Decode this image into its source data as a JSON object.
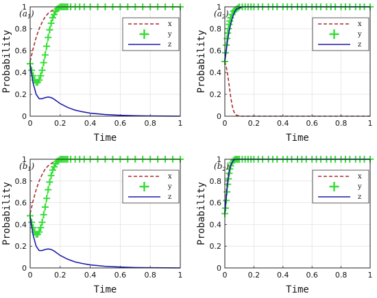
{
  "chart_data": [
    {
      "type": "line",
      "panel_label": "a",
      "panel_subscript": "1",
      "xlabel": "Time",
      "ylabel": "Probability",
      "xlim": [
        0,
        1
      ],
      "ylim": [
        0,
        1
      ],
      "xticks": [
        "0",
        "0.2",
        "0.4",
        "0.6",
        "0.8",
        "1"
      ],
      "yticks": [
        "0",
        "0.2",
        "0.4",
        "0.6",
        "0.8",
        "1"
      ],
      "grid": true,
      "legend_position": "top-right",
      "series": [
        {
          "name": "x",
          "color": "#a52a2a",
          "style": "dashed",
          "x": [
            0,
            0.02,
            0.04,
            0.06,
            0.08,
            0.1,
            0.12,
            0.14,
            0.16,
            0.18,
            0.2,
            0.25,
            0.3,
            0.4,
            0.6,
            0.8,
            1.0
          ],
          "y": [
            0.5,
            0.62,
            0.72,
            0.8,
            0.86,
            0.91,
            0.94,
            0.96,
            0.98,
            0.99,
            1.0,
            1.0,
            1.0,
            1.0,
            1.0,
            1.0,
            1.0
          ]
        },
        {
          "name": "y",
          "color": "#33dd33",
          "style": "plus",
          "x": [
            0,
            0.01,
            0.02,
            0.03,
            0.04,
            0.05,
            0.06,
            0.07,
            0.08,
            0.09,
            0.1,
            0.11,
            0.12,
            0.13,
            0.14,
            0.15,
            0.16,
            0.17,
            0.18,
            0.19,
            0.2,
            0.21,
            0.22,
            0.23,
            0.24,
            0.25,
            0.27,
            0.3,
            0.33,
            0.36,
            0.4,
            0.45,
            0.5,
            0.55,
            0.6,
            0.65,
            0.7,
            0.75,
            0.8,
            0.85,
            0.9,
            0.95,
            1.0
          ],
          "y": [
            0.48,
            0.42,
            0.37,
            0.33,
            0.31,
            0.31,
            0.33,
            0.37,
            0.42,
            0.49,
            0.56,
            0.64,
            0.72,
            0.79,
            0.85,
            0.9,
            0.93,
            0.96,
            0.98,
            0.99,
            1.0,
            1.0,
            1.0,
            1.0,
            1.0,
            1.0,
            1.0,
            1.0,
            1.0,
            1.0,
            1.0,
            1.0,
            1.0,
            1.0,
            1.0,
            1.0,
            1.0,
            1.0,
            1.0,
            1.0,
            1.0,
            1.0,
            1.0
          ]
        },
        {
          "name": "z",
          "color": "#1a1aaa",
          "style": "solid",
          "x": [
            0,
            0.02,
            0.04,
            0.06,
            0.08,
            0.1,
            0.12,
            0.14,
            0.16,
            0.18,
            0.2,
            0.25,
            0.3,
            0.35,
            0.4,
            0.5,
            0.6,
            0.7,
            0.8,
            0.9,
            1.0
          ],
          "y": [
            0.47,
            0.3,
            0.2,
            0.16,
            0.16,
            0.17,
            0.175,
            0.17,
            0.155,
            0.135,
            0.115,
            0.08,
            0.055,
            0.04,
            0.028,
            0.015,
            0.008,
            0.004,
            0.002,
            0.001,
            0.0
          ]
        }
      ]
    },
    {
      "type": "line",
      "panel_label": "a",
      "panel_subscript": "2",
      "xlabel": "Time",
      "ylabel": "Probability",
      "xlim": [
        0,
        1
      ],
      "ylim": [
        0,
        1
      ],
      "xticks": [
        "0",
        "0.2",
        "0.4",
        "0.6",
        "0.8",
        "1"
      ],
      "yticks": [
        "0",
        "0.2",
        "0.4",
        "0.6",
        "0.8",
        "1"
      ],
      "grid": true,
      "legend_position": "top-right",
      "series": [
        {
          "name": "x",
          "color": "#a52a2a",
          "style": "dashed",
          "x": [
            0,
            0.01,
            0.02,
            0.03,
            0.04,
            0.05,
            0.06,
            0.07,
            0.08,
            0.1,
            0.15,
            0.2,
            0.4,
            0.6,
            0.8,
            1.0
          ],
          "y": [
            0.5,
            0.45,
            0.38,
            0.28,
            0.18,
            0.1,
            0.05,
            0.02,
            0.01,
            0.0,
            0.0,
            0.0,
            0.0,
            0.0,
            0.0,
            0.0
          ]
        },
        {
          "name": "y",
          "color": "#33dd33",
          "style": "plus",
          "x": [
            0,
            0.005,
            0.01,
            0.015,
            0.02,
            0.025,
            0.03,
            0.035,
            0.04,
            0.05,
            0.06,
            0.07,
            0.08,
            0.09,
            0.1,
            0.12,
            0.14,
            0.16,
            0.18,
            0.2,
            0.23,
            0.26,
            0.3,
            0.33,
            0.36,
            0.4,
            0.43,
            0.46,
            0.5,
            0.53,
            0.56,
            0.6,
            0.63,
            0.66,
            0.7,
            0.73,
            0.76,
            0.8,
            0.83,
            0.86,
            0.9,
            0.93,
            0.96,
            1.0
          ],
          "y": [
            0.5,
            0.58,
            0.65,
            0.71,
            0.76,
            0.8,
            0.84,
            0.87,
            0.9,
            0.93,
            0.96,
            0.97,
            0.98,
            0.99,
            1.0,
            1.0,
            1.0,
            1.0,
            1.0,
            1.0,
            1.0,
            1.0,
            1.0,
            1.0,
            1.0,
            1.0,
            1.0,
            1.0,
            1.0,
            1.0,
            1.0,
            1.0,
            1.0,
            1.0,
            1.0,
            1.0,
            1.0,
            1.0,
            1.0,
            1.0,
            1.0,
            1.0,
            1.0,
            1.0
          ]
        },
        {
          "name": "z",
          "color": "#1a1aaa",
          "style": "solid",
          "x": [
            0,
            0.01,
            0.02,
            0.03,
            0.04,
            0.05,
            0.06,
            0.07,
            0.08,
            0.1,
            0.12,
            0.15,
            0.2,
            0.4,
            0.6,
            0.8,
            1.0
          ],
          "y": [
            0.5,
            0.6,
            0.7,
            0.78,
            0.84,
            0.89,
            0.93,
            0.96,
            0.98,
            0.99,
            1.0,
            1.0,
            1.0,
            1.0,
            1.0,
            1.0,
            1.0
          ]
        }
      ]
    },
    {
      "type": "line",
      "panel_label": "b",
      "panel_subscript": "1",
      "xlabel": "Time",
      "ylabel": "Probability",
      "xlim": [
        0,
        1
      ],
      "ylim": [
        0,
        1
      ],
      "xticks": [
        "0",
        "0.2",
        "0.4",
        "0.6",
        "0.8",
        "1"
      ],
      "yticks": [
        "0",
        "0.2",
        "0.4",
        "0.6",
        "0.8",
        "1"
      ],
      "grid": true,
      "legend_position": "top-right",
      "series": [
        {
          "name": "x",
          "color": "#a52a2a",
          "style": "dashed",
          "x": [
            0,
            0.02,
            0.04,
            0.06,
            0.08,
            0.1,
            0.12,
            0.14,
            0.16,
            0.18,
            0.2,
            0.25,
            0.3,
            0.4,
            0.6,
            0.8,
            1.0
          ],
          "y": [
            0.5,
            0.62,
            0.72,
            0.8,
            0.86,
            0.91,
            0.94,
            0.96,
            0.98,
            0.99,
            1.0,
            1.0,
            1.0,
            1.0,
            1.0,
            1.0,
            1.0
          ]
        },
        {
          "name": "y",
          "color": "#33dd33",
          "style": "plus",
          "x": [
            0,
            0.01,
            0.02,
            0.03,
            0.04,
            0.05,
            0.06,
            0.07,
            0.08,
            0.09,
            0.1,
            0.11,
            0.12,
            0.13,
            0.14,
            0.15,
            0.16,
            0.17,
            0.18,
            0.19,
            0.2,
            0.21,
            0.22,
            0.23,
            0.24,
            0.25,
            0.27,
            0.3,
            0.33,
            0.36,
            0.4,
            0.45,
            0.5,
            0.55,
            0.6,
            0.65,
            0.7,
            0.75,
            0.8,
            0.85,
            0.9,
            0.95,
            1.0
          ],
          "y": [
            0.48,
            0.42,
            0.37,
            0.33,
            0.31,
            0.31,
            0.33,
            0.37,
            0.42,
            0.49,
            0.56,
            0.64,
            0.72,
            0.79,
            0.85,
            0.9,
            0.93,
            0.96,
            0.98,
            0.99,
            1.0,
            1.0,
            1.0,
            1.0,
            1.0,
            1.0,
            1.0,
            1.0,
            1.0,
            1.0,
            1.0,
            1.0,
            1.0,
            1.0,
            1.0,
            1.0,
            1.0,
            1.0,
            1.0,
            1.0,
            1.0,
            1.0,
            1.0
          ]
        },
        {
          "name": "z",
          "color": "#1a1aaa",
          "style": "solid",
          "x": [
            0,
            0.02,
            0.04,
            0.06,
            0.08,
            0.1,
            0.12,
            0.14,
            0.16,
            0.18,
            0.2,
            0.25,
            0.3,
            0.35,
            0.4,
            0.5,
            0.6,
            0.7,
            0.8,
            0.9,
            1.0
          ],
          "y": [
            0.47,
            0.3,
            0.2,
            0.16,
            0.16,
            0.17,
            0.175,
            0.17,
            0.155,
            0.135,
            0.115,
            0.08,
            0.055,
            0.04,
            0.028,
            0.015,
            0.008,
            0.004,
            0.002,
            0.001,
            0.0
          ]
        }
      ]
    },
    {
      "type": "line",
      "panel_label": "b",
      "panel_subscript": "2",
      "xlabel": "Time",
      "ylabel": "Probability",
      "xlim": [
        0,
        1
      ],
      "ylim": [
        0,
        1
      ],
      "xticks": [
        "0",
        "0.2",
        "0.4",
        "0.6",
        "0.8",
        "1"
      ],
      "yticks": [
        "0",
        "0.2",
        "0.4",
        "0.6",
        "0.8",
        "1"
      ],
      "grid": true,
      "legend_position": "top-right",
      "series": [
        {
          "name": "x",
          "color": "#a52a2a",
          "style": "dashed",
          "x": [
            0,
            0.005,
            0.01,
            0.015,
            0.02,
            0.03,
            0.04,
            0.05,
            0.06,
            0.08,
            0.1,
            0.2,
            0.4,
            0.6,
            0.8,
            1.0
          ],
          "y": [
            0.5,
            0.6,
            0.7,
            0.78,
            0.84,
            0.92,
            0.96,
            0.98,
            0.99,
            1.0,
            1.0,
            1.0,
            1.0,
            1.0,
            1.0,
            1.0
          ]
        },
        {
          "name": "y",
          "color": "#33dd33",
          "style": "plus",
          "x": [
            0,
            0.005,
            0.01,
            0.015,
            0.02,
            0.025,
            0.03,
            0.035,
            0.04,
            0.05,
            0.06,
            0.07,
            0.08,
            0.09,
            0.1,
            0.12,
            0.14,
            0.16,
            0.18,
            0.2,
            0.23,
            0.26,
            0.3,
            0.33,
            0.36,
            0.4,
            0.43,
            0.46,
            0.5,
            0.53,
            0.56,
            0.6,
            0.63,
            0.66,
            0.7,
            0.73,
            0.76,
            0.8,
            0.83,
            0.86,
            0.9,
            0.93,
            0.96,
            1.0
          ],
          "y": [
            0.5,
            0.55,
            0.62,
            0.7,
            0.77,
            0.82,
            0.87,
            0.91,
            0.94,
            0.97,
            0.99,
            1.0,
            1.0,
            1.0,
            1.0,
            1.0,
            1.0,
            1.0,
            1.0,
            1.0,
            1.0,
            1.0,
            1.0,
            1.0,
            1.0,
            1.0,
            1.0,
            1.0,
            1.0,
            1.0,
            1.0,
            1.0,
            1.0,
            1.0,
            1.0,
            1.0,
            1.0,
            1.0,
            1.0,
            1.0,
            1.0,
            1.0,
            1.0,
            1.0
          ]
        },
        {
          "name": "z",
          "color": "#1a1aaa",
          "style": "solid",
          "x": [
            0,
            0.005,
            0.01,
            0.015,
            0.02,
            0.03,
            0.04,
            0.05,
            0.06,
            0.07,
            0.08,
            0.1,
            0.2,
            0.4,
            0.6,
            0.8,
            1.0
          ],
          "y": [
            0.5,
            0.58,
            0.66,
            0.73,
            0.79,
            0.88,
            0.94,
            0.97,
            0.99,
            1.0,
            1.0,
            1.0,
            1.0,
            1.0,
            1.0,
            1.0,
            1.0
          ]
        }
      ]
    }
  ]
}
